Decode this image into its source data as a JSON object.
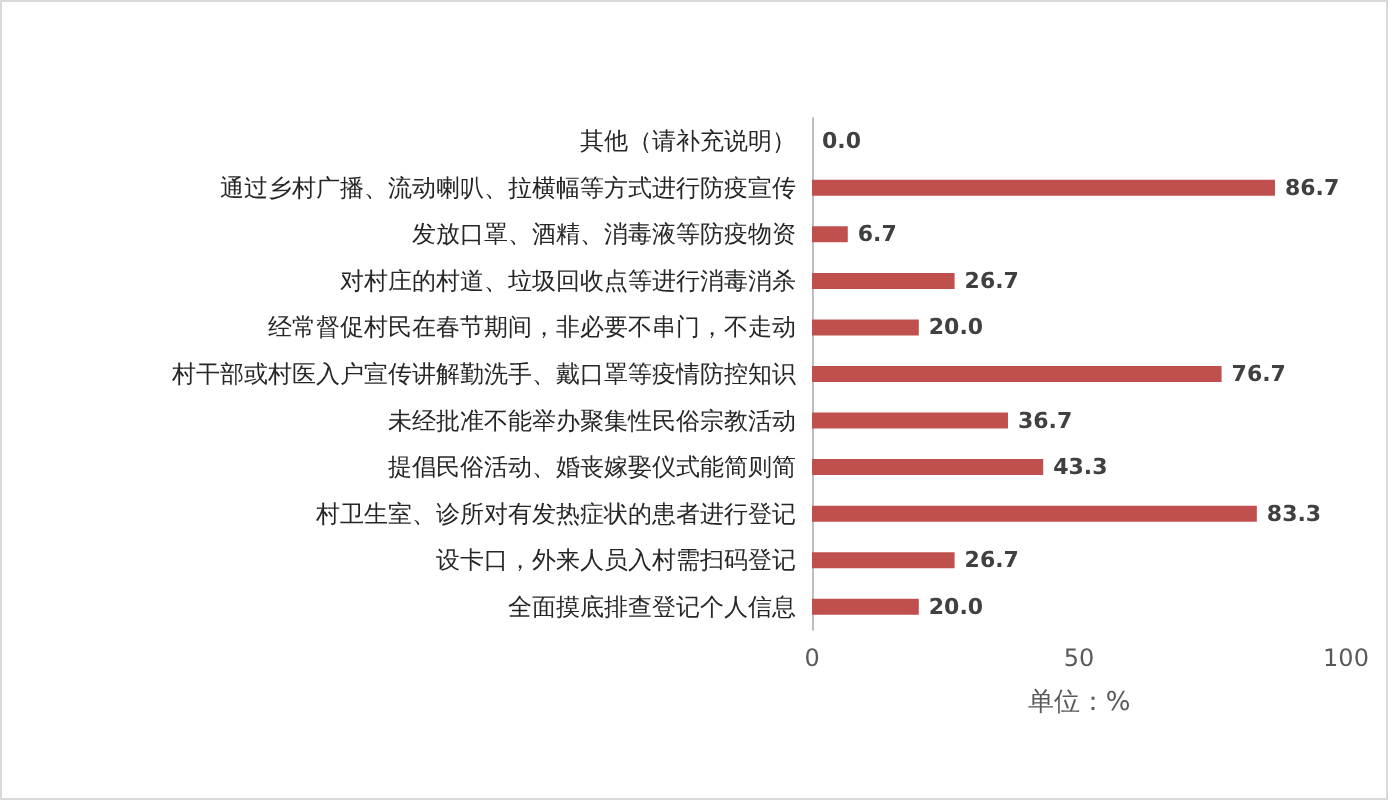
{
  "chart_data": {
    "type": "bar",
    "orientation": "horizontal",
    "categories": [
      "其他（请补充说明）",
      "通过乡村广播、流动喇叭、拉横幅等方式进行防疫宣传",
      "发放口罩、酒精、消毒液等防疫物资",
      "对村庄的村道、垃圾回收点等进行消毒消杀",
      "经常督促村民在春节期间，非必要不串门，不走动",
      "村干部或村医入户宣传讲解勤洗手、戴口罩等疫情防控知识",
      "未经批准不能举办聚集性民俗宗教活动",
      "提倡民俗活动、婚丧嫁娶仪式能简则简",
      "村卫生室、诊所对有发热症状的患者进行登记",
      "设卡口，外来人员入村需扫码登记",
      "全面摸底排查登记个人信息"
    ],
    "values": [
      0,
      86.7,
      6.7,
      26.7,
      20,
      76.7,
      36.7,
      43.3,
      83.3,
      26.7,
      20
    ],
    "value_labels": [
      "0.0",
      "86.7",
      "6.7",
      "26.7",
      "20.0",
      "76.7",
      "36.7",
      "43.3",
      "83.3",
      "26.7",
      "20.0"
    ],
    "color": "#c0504d",
    "xlabel": "单位：%",
    "xlim": [
      0,
      100
    ],
    "xticks": [
      0,
      50,
      100
    ],
    "grid": false
  }
}
